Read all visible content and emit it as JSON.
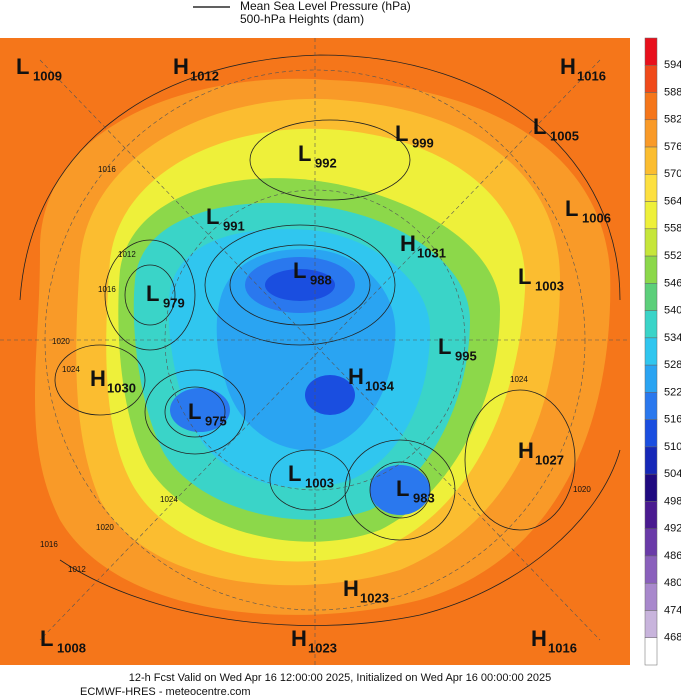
{
  "legend": {
    "items": [
      "Mean Sea Level Pressure (hPa)",
      "500-hPa Heights (dam)"
    ]
  },
  "colorbar": {
    "labels": [
      "594",
      "588",
      "582",
      "576",
      "570",
      "564",
      "558",
      "552",
      "546",
      "540",
      "534",
      "528",
      "522",
      "516",
      "510",
      "504",
      "498",
      "492",
      "486",
      "480",
      "474",
      "468"
    ],
    "colors": [
      "#e8101c",
      "#f04a1a",
      "#f5761a",
      "#f99a28",
      "#fbbd30",
      "#fde040",
      "#eef03a",
      "#c6e63a",
      "#8cd84a",
      "#5ccf7a",
      "#3ad4c8",
      "#30c6ef",
      "#2aa4f2",
      "#2a78ee",
      "#1a4ee0",
      "#1628b8",
      "#200a80",
      "#4a1a90",
      "#6a3aa8",
      "#8a60bc",
      "#a888cc",
      "#c8b4dc",
      "#ffffff"
    ]
  },
  "centers": [
    {
      "type": "L",
      "value": "1009"
    },
    {
      "type": "H",
      "value": "1012"
    },
    {
      "type": "H",
      "value": "1016"
    },
    {
      "type": "L",
      "value": "999"
    },
    {
      "type": "L",
      "value": "1005"
    },
    {
      "type": "L",
      "value": "992"
    },
    {
      "type": "L",
      "value": "1006"
    },
    {
      "type": "L",
      "value": "991"
    },
    {
      "type": "H",
      "value": "1031"
    },
    {
      "type": "L",
      "value": "988"
    },
    {
      "type": "L",
      "value": "1003"
    },
    {
      "type": "L",
      "value": "979"
    },
    {
      "type": "L",
      "value": "995"
    },
    {
      "type": "H",
      "value": "1030"
    },
    {
      "type": "H",
      "value": "1034"
    },
    {
      "type": "L",
      "value": "975"
    },
    {
      "type": "H",
      "value": "1027"
    },
    {
      "type": "L",
      "value": "1003"
    },
    {
      "type": "L",
      "value": "983"
    },
    {
      "type": "H",
      "value": "1023"
    },
    {
      "type": "L",
      "value": "1008"
    },
    {
      "type": "H",
      "value": "1023"
    },
    {
      "type": "H",
      "value": "1016"
    }
  ],
  "isobar_labels": [
    "1016",
    "1012",
    "1016",
    "1024",
    "1020",
    "1024",
    "1020",
    "1016",
    "1012",
    "1024",
    "1020"
  ],
  "footer": {
    "valid": "12-h Fcst Valid on Wed Apr 16 12:00:00 2025, Initialized on Wed Apr 16 00:00:00 2025",
    "source": "ECMWF-HRES  - meteocentre.com"
  }
}
